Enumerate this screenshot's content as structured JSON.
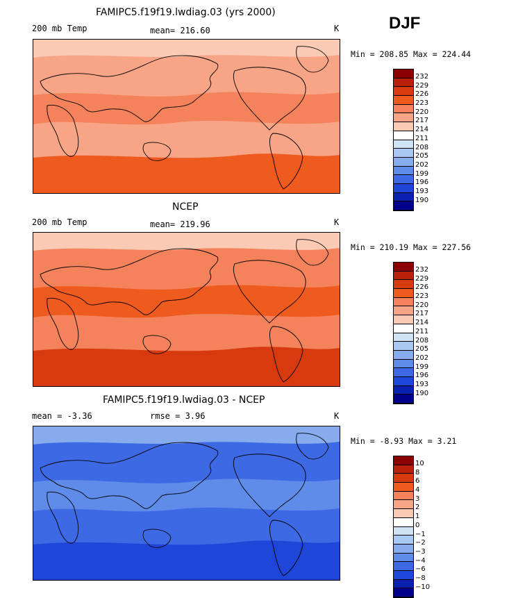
{
  "season": "DJF",
  "panels": [
    {
      "title": "FAMIPC5.f19f19.lwdiag.03 (yrs 2000)",
      "left_label": "200 mb Temp",
      "mean_label": "mean= 216.60",
      "units": "K",
      "min_max": "Min = 208.85 Max = 224.44",
      "colorbar": {
        "labels": [
          "232",
          "229",
          "226",
          "223",
          "220",
          "217",
          "214",
          "211",
          "208",
          "205",
          "202",
          "199",
          "196",
          "193",
          "190"
        ],
        "colors": [
          "#8b0000",
          "#b8200a",
          "#d83a10",
          "#ef5a1e",
          "#f4825a",
          "#f8a486",
          "#fbcab4",
          "#ffffff",
          "#cfe3f7",
          "#a9c8f2",
          "#86acee",
          "#5f8ce9",
          "#3d6ae4",
          "#1f46d8",
          "#0a20b0",
          "#00008b"
        ]
      },
      "fill": {
        "background": "#f8a486",
        "bands": [
          "#fbcab4",
          "#f4825a",
          "#ef5a1e"
        ]
      }
    },
    {
      "title": "NCEP",
      "left_label": "200 mb Temp",
      "mean_label": "mean= 219.96",
      "units": "K",
      "min_max": "Min = 210.19 Max = 227.56",
      "colorbar": {
        "labels": [
          "232",
          "229",
          "226",
          "223",
          "220",
          "217",
          "214",
          "211",
          "208",
          "205",
          "202",
          "199",
          "196",
          "193",
          "190"
        ],
        "colors": [
          "#8b0000",
          "#b8200a",
          "#d83a10",
          "#ef5a1e",
          "#f4825a",
          "#f8a486",
          "#fbcab4",
          "#ffffff",
          "#cfe3f7",
          "#a9c8f2",
          "#86acee",
          "#5f8ce9",
          "#3d6ae4",
          "#1f46d8",
          "#0a20b0",
          "#00008b"
        ]
      },
      "fill": {
        "background": "#f4825a",
        "bands": [
          "#fbcab4",
          "#ef5a1e",
          "#d83a10"
        ]
      }
    },
    {
      "title": "FAMIPC5.f19f19.lwdiag.03 - NCEP",
      "left_label": "mean =   -3.36",
      "mean_label": "rmse =    3.96",
      "units": "K",
      "min_max": "Min =  -8.93 Max =   3.21",
      "colorbar": {
        "labels": [
          "10",
          "8",
          "6",
          "4",
          "3",
          "2",
          "1",
          "0",
          "−1",
          "−2",
          "−3",
          "−4",
          "−6",
          "−8",
          "−10"
        ],
        "colors": [
          "#8b0000",
          "#b8200a",
          "#d83a10",
          "#ef5a1e",
          "#f4825a",
          "#f8a486",
          "#fbcab4",
          "#ffffff",
          "#cfe3f7",
          "#a9c8f2",
          "#86acee",
          "#5f8ce9",
          "#3d6ae4",
          "#1f46d8",
          "#0a20b0",
          "#00008b"
        ]
      },
      "fill": {
        "background": "#3d6ae4",
        "bands": [
          "#86acee",
          "#5f8ce9",
          "#1f46d8"
        ]
      }
    }
  ],
  "chart_data": [
    {
      "type": "heatmap",
      "title": "FAMIPC5.f19f19.lwdiag.03 (yrs 2000)",
      "variable": "200 mb Temp",
      "units": "K",
      "mean": 216.6,
      "min": 208.85,
      "max": 224.44,
      "contour_levels": [
        190,
        193,
        196,
        199,
        202,
        205,
        208,
        211,
        214,
        217,
        220,
        223,
        226,
        229,
        232
      ]
    },
    {
      "type": "heatmap",
      "title": "NCEP",
      "variable": "200 mb Temp",
      "units": "K",
      "mean": 219.96,
      "min": 210.19,
      "max": 227.56,
      "contour_levels": [
        190,
        193,
        196,
        199,
        202,
        205,
        208,
        211,
        214,
        217,
        220,
        223,
        226,
        229,
        232
      ]
    },
    {
      "type": "heatmap",
      "title": "FAMIPC5.f19f19.lwdiag.03 - NCEP",
      "units": "K",
      "mean": -3.36,
      "rmse": 3.96,
      "min": -8.93,
      "max": 3.21,
      "contour_levels": [
        -10,
        -8,
        -6,
        -4,
        -3,
        -2,
        -1,
        0,
        1,
        2,
        3,
        4,
        6,
        8,
        10
      ]
    }
  ]
}
